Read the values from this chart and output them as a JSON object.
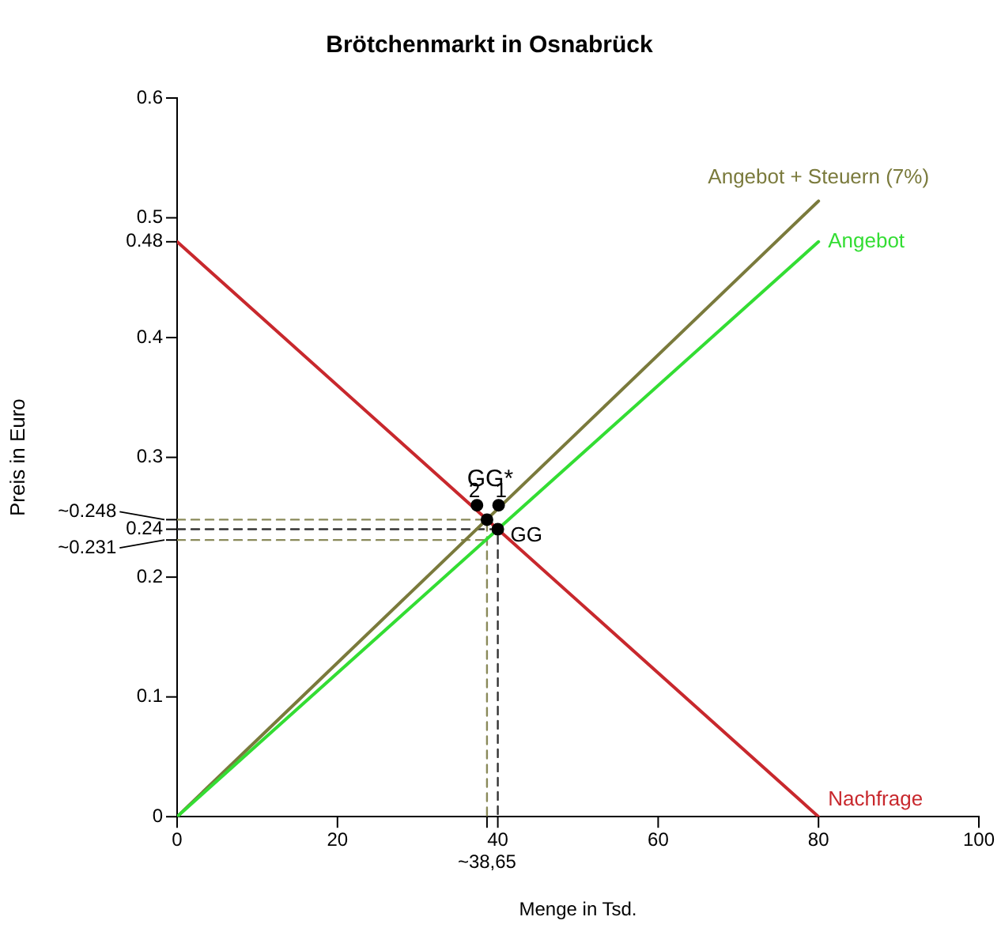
{
  "chart_data": {
    "type": "line",
    "title": "Brötchenmarkt in Osnabrück",
    "xlabel": "Menge in Tsd.",
    "ylabel": "Preis in Euro",
    "xlim": [
      0,
      100
    ],
    "xticks": [
      0,
      20,
      {
        "value": 38.65,
        "label": null
      },
      40,
      60,
      80,
      100
    ],
    "ylim": [
      0,
      0.6
    ],
    "yticks": [
      0,
      0.1,
      0.2,
      {
        "value": 0.231,
        "label": null
      },
      0.24,
      {
        "value": 0.248,
        "label": null
      },
      0.3,
      0.4,
      0.48,
      0.5,
      0.6
    ],
    "grid": false,
    "legend": false,
    "marker": "none",
    "line_style": "solid",
    "series": [
      {
        "name": "Nachfrage",
        "color": "#c8282d",
        "x": [
          0,
          80
        ],
        "values": [
          0.48,
          0
        ]
      },
      {
        "name": "Angebot",
        "color": "#33dd33",
        "x": [
          0,
          80
        ],
        "values": [
          0,
          0.48
        ]
      },
      {
        "name": "Angebot + Steuern (7%)",
        "color": "#7a7a3c",
        "x": [
          0,
          80
        ],
        "values": [
          0,
          0.514
        ]
      },
      {
        "color": "#333333",
        "line_style": "dashed",
        "x": [
          0,
          40,
          40
        ],
        "values": [
          0.24,
          0.24,
          0
        ]
      },
      {
        "color": "#8a8a5a",
        "line_style": "dashed",
        "x": [
          0,
          38.65,
          38.65
        ],
        "values": [
          0.248,
          0.248,
          0
        ]
      },
      {
        "color": "#8a8a5a",
        "line_style": "dashed",
        "x": [
          0,
          38.65
        ],
        "values": [
          0.231,
          0.231
        ]
      },
      {
        "type": "scatter",
        "color": "#000000",
        "marker": "circle",
        "x": [
          37.4,
          38.65,
          40.1,
          40
        ],
        "values": [
          0.26,
          0.248,
          0.26,
          0.24
        ]
      }
    ],
    "annotations": [
      {
        "text": "GG",
        "x": 40,
        "y": 0.24
      },
      {
        "text": "GG*",
        "x": 38.65,
        "y": 0.248
      },
      {
        "text": "2",
        "x": 37.4,
        "y": 0.26
      },
      {
        "text": "1",
        "x": 40.1,
        "y": 0.26
      },
      {
        "text": "~0.248",
        "x": 0,
        "y": 0.248
      },
      {
        "text": "~0.231",
        "x": 0,
        "y": 0.231
      },
      {
        "text": "~38,65",
        "x": 38.65,
        "y": 0
      }
    ]
  }
}
